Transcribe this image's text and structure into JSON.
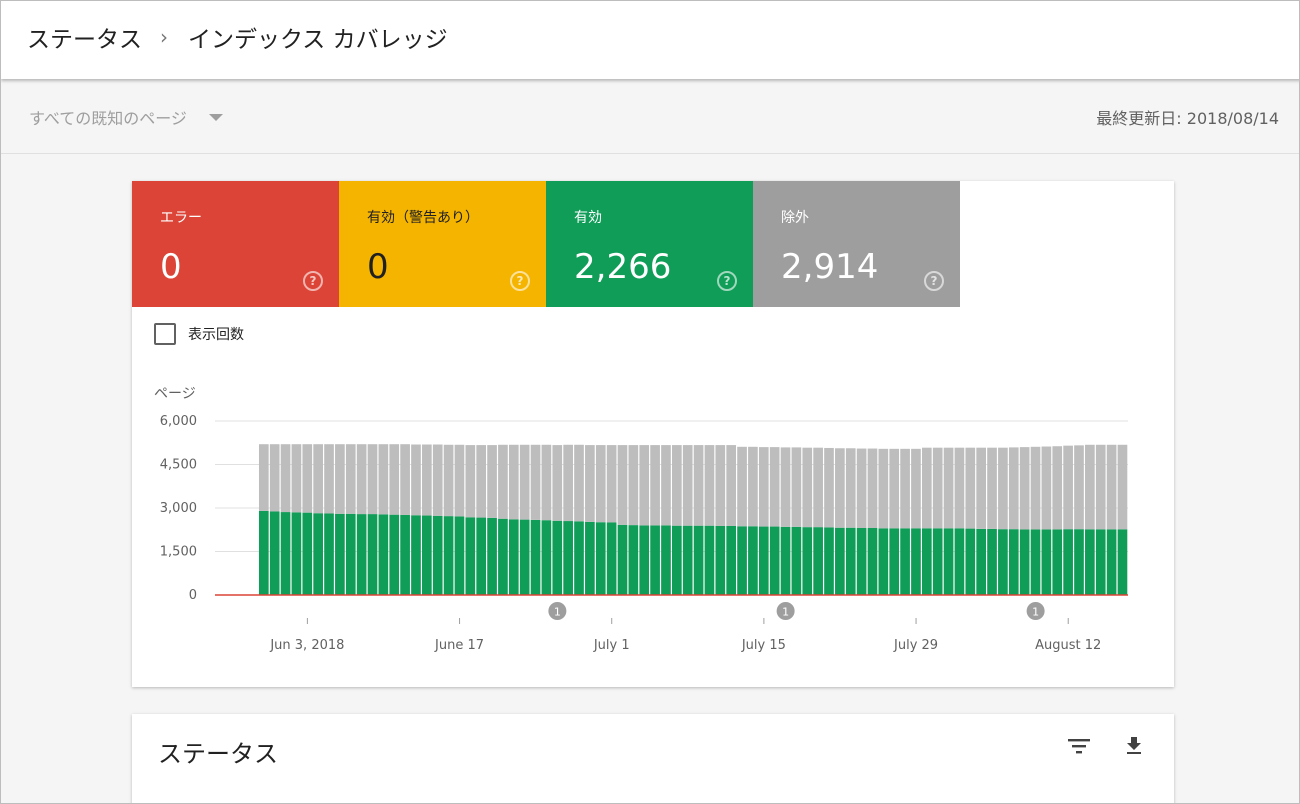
{
  "header": {
    "breadcrumb": [
      "ステータス",
      "インデックス カバレッジ"
    ],
    "separator": "›"
  },
  "subbar": {
    "filter_value": "すべての既知のページ",
    "last_updated": "最終更新日: 2018/08/14"
  },
  "tiles": [
    {
      "label": "エラー",
      "value": "0",
      "color": "#db4437"
    },
    {
      "label": "有効（警告あり）",
      "value": "0",
      "color": "#f4b400"
    },
    {
      "label": "有効",
      "value": "2,266",
      "color": "#0f9d58"
    },
    {
      "label": "除外",
      "value": "2,914",
      "color": "#9e9e9e"
    }
  ],
  "checkbox_label": "表示回数",
  "chart_data": {
    "type": "bar",
    "stacked": true,
    "ylabel": "ページ",
    "ylim": [
      0,
      6000
    ],
    "yticks": [
      "6,000",
      "4,500",
      "3,000",
      "1,500",
      "0"
    ],
    "ytick_values": [
      6000,
      4500,
      3000,
      1500,
      0
    ],
    "xtick_labels": [
      "Jun 3, 2018",
      "June 17",
      "July 1",
      "July 15",
      "July 29",
      "August 12"
    ],
    "xtick_day_index": [
      8,
      22,
      36,
      50,
      64,
      78
    ],
    "annotations": [
      {
        "day_index": 31,
        "label": "1"
      },
      {
        "day_index": 52,
        "label": "1"
      },
      {
        "day_index": 75,
        "label": "1"
      }
    ],
    "days": 84,
    "first_bar_day_index": 4,
    "grid": true,
    "series": [
      {
        "name": "有効",
        "color": "#0f9d58",
        "values": [
          2900,
          2880,
          2860,
          2850,
          2840,
          2820,
          2810,
          2800,
          2800,
          2790,
          2790,
          2780,
          2770,
          2760,
          2750,
          2740,
          2730,
          2720,
          2710,
          2680,
          2670,
          2660,
          2630,
          2610,
          2600,
          2590,
          2580,
          2560,
          2550,
          2540,
          2520,
          2510,
          2500,
          2420,
          2410,
          2400,
          2400,
          2400,
          2390,
          2390,
          2390,
          2390,
          2380,
          2380,
          2370,
          2370,
          2360,
          2360,
          2350,
          2350,
          2340,
          2340,
          2330,
          2320,
          2320,
          2310,
          2310,
          2300,
          2300,
          2300,
          2300,
          2300,
          2300,
          2300,
          2300,
          2290,
          2280,
          2280,
          2270,
          2270,
          2260,
          2260,
          2260,
          2260,
          2270,
          2270,
          2266,
          2266,
          2266,
          2266
        ]
      },
      {
        "name": "除外",
        "color": "#bdbdbd",
        "values": [
          2300,
          2320,
          2340,
          2350,
          2360,
          2380,
          2390,
          2400,
          2400,
          2410,
          2410,
          2420,
          2430,
          2440,
          2440,
          2450,
          2460,
          2460,
          2470,
          2490,
          2500,
          2510,
          2550,
          2570,
          2580,
          2590,
          2600,
          2610,
          2630,
          2640,
          2650,
          2660,
          2670,
          2750,
          2760,
          2770,
          2770,
          2770,
          2780,
          2780,
          2780,
          2780,
          2790,
          2790,
          2740,
          2740,
          2740,
          2740,
          2740,
          2740,
          2740,
          2740,
          2740,
          2740,
          2740,
          2740,
          2740,
          2740,
          2740,
          2740,
          2740,
          2780,
          2780,
          2780,
          2780,
          2790,
          2800,
          2800,
          2810,
          2820,
          2840,
          2850,
          2860,
          2870,
          2880,
          2890,
          2914,
          2914,
          2914,
          2914
        ]
      }
    ]
  },
  "status_card": {
    "title": "ステータス",
    "filter_icon": "filter-icon",
    "download_icon": "download-icon"
  }
}
